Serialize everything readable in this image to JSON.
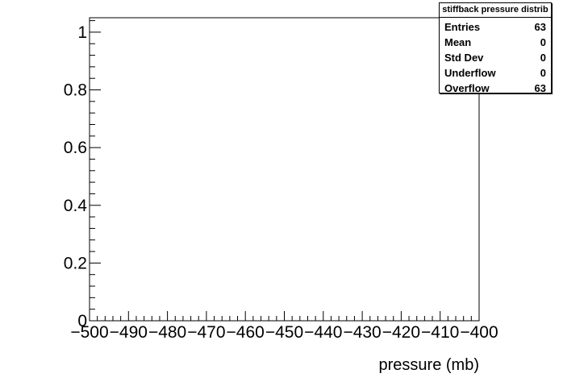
{
  "chart_data": {
    "type": "bar",
    "title": "",
    "xlabel": "pressure (mb)",
    "ylabel": "",
    "xlim": [
      -500,
      -400
    ],
    "ylim": [
      0,
      1.05
    ],
    "x_ticks": [
      -500,
      -490,
      -480,
      -470,
      -460,
      -450,
      -440,
      -430,
      -420,
      -410,
      -400
    ],
    "x_tick_labels": [
      "−500",
      "−490",
      "−480",
      "−470",
      "−460",
      "−450",
      "−440",
      "−430",
      "−420",
      "−410",
      "−400"
    ],
    "y_ticks": [
      0,
      0.2,
      0.4,
      0.6,
      0.8,
      1
    ],
    "y_tick_labels": [
      "0",
      "0.2",
      "0.4",
      "0.6",
      "0.8",
      "1"
    ],
    "values": [],
    "stats": {
      "title": "stiffback pressure distrib",
      "rows": [
        {
          "label": "Entries",
          "value": "63"
        },
        {
          "label": "Mean",
          "value": "0"
        },
        {
          "label": "Std Dev",
          "value": "0"
        },
        {
          "label": "Underflow",
          "value": "0"
        },
        {
          "label": "Overflow",
          "value": "63"
        }
      ]
    }
  }
}
